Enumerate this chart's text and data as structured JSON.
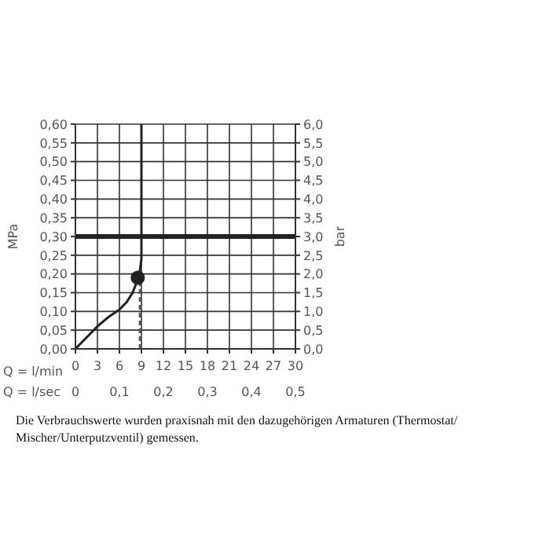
{
  "chart_data": {
    "type": "line",
    "xlabel": "Q = l/min",
    "x2label": "Q = l/sec",
    "ylabel": "MPa",
    "y2label": "bar",
    "annotations": [
      "Die Verbrauchswerte wurden praxisnah mit den dazugehörigen Armaturen (Thermostat/ Mischer/Unterputzventil) gemessen."
    ],
    "series": [
      {
        "color": "#222222",
        "marker": "none",
        "line_style": "solid",
        "x": [
          0,
          1.5,
          3,
          4.5,
          6,
          7,
          7.8,
          8.4,
          8.8,
          9,
          9,
          9
        ],
        "values": [
          0,
          0.03,
          0.06,
          0.085,
          0.105,
          0.125,
          0.15,
          0.18,
          0.21,
          0.24,
          0.3,
          0.6
        ]
      },
      {
        "color": "#555555",
        "marker": "none",
        "line_style": "dashed",
        "x": [
          8.8,
          8.8
        ],
        "values": [
          0,
          0.19
        ]
      },
      {
        "type": "scatter",
        "color": "#222222",
        "marker": "circle",
        "x": [
          8.5
        ],
        "values": [
          0.19
        ]
      }
    ],
    "ref_lines": [
      {
        "axis": "y",
        "value": 0.3,
        "color": "#222222"
      }
    ],
    "xlim": [
      0,
      30
    ],
    "xticks": [
      0,
      3,
      6,
      9,
      12,
      15,
      18,
      21,
      24,
      27,
      30
    ],
    "x2lim": [
      0,
      0.5
    ],
    "x2ticks": [
      0,
      {
        "value": 0.1,
        "label": "0,1"
      },
      {
        "value": 0.2,
        "label": "0,2"
      },
      {
        "value": 0.3,
        "label": "0,3"
      },
      {
        "value": 0.4,
        "label": "0,4"
      },
      {
        "value": 0.5,
        "label": "0,5"
      }
    ],
    "ylim": [
      0,
      0.6
    ],
    "yticks": [
      {
        "value": 0,
        "label": "0,00"
      },
      {
        "value": 0.05,
        "label": "0,05"
      },
      {
        "value": 0.1,
        "label": "0,10"
      },
      {
        "value": 0.15,
        "label": "0,15"
      },
      {
        "value": 0.2,
        "label": "0,20"
      },
      {
        "value": 0.25,
        "label": "0,25"
      },
      {
        "value": 0.3,
        "label": "0,30"
      },
      {
        "value": 0.35,
        "label": "0,35"
      },
      {
        "value": 0.4,
        "label": "0,40"
      },
      {
        "value": 0.45,
        "label": "0,45"
      },
      {
        "value": 0.5,
        "label": "0,50"
      },
      {
        "value": 0.55,
        "label": "0,55"
      },
      {
        "value": 0.6,
        "label": "0,60"
      }
    ],
    "y2lim": [
      0,
      6
    ],
    "y2ticks": [
      {
        "value": 0,
        "label": "0,0"
      },
      {
        "value": 0.5,
        "label": "0,5"
      },
      {
        "value": 1,
        "label": "1,0"
      },
      {
        "value": 1.5,
        "label": "1,5"
      },
      {
        "value": 2,
        "label": "2,0"
      },
      {
        "value": 2.5,
        "label": "2,5"
      },
      {
        "value": 3,
        "label": "3,0"
      },
      {
        "value": 3.5,
        "label": "3,5"
      },
      {
        "value": 4,
        "label": "4,0"
      },
      {
        "value": 4.5,
        "label": "4,5"
      },
      {
        "value": 5,
        "label": "5,0"
      },
      {
        "value": 5.5,
        "label": "5,5"
      },
      {
        "value": 6,
        "label": "6,0"
      }
    ],
    "grid": true
  }
}
